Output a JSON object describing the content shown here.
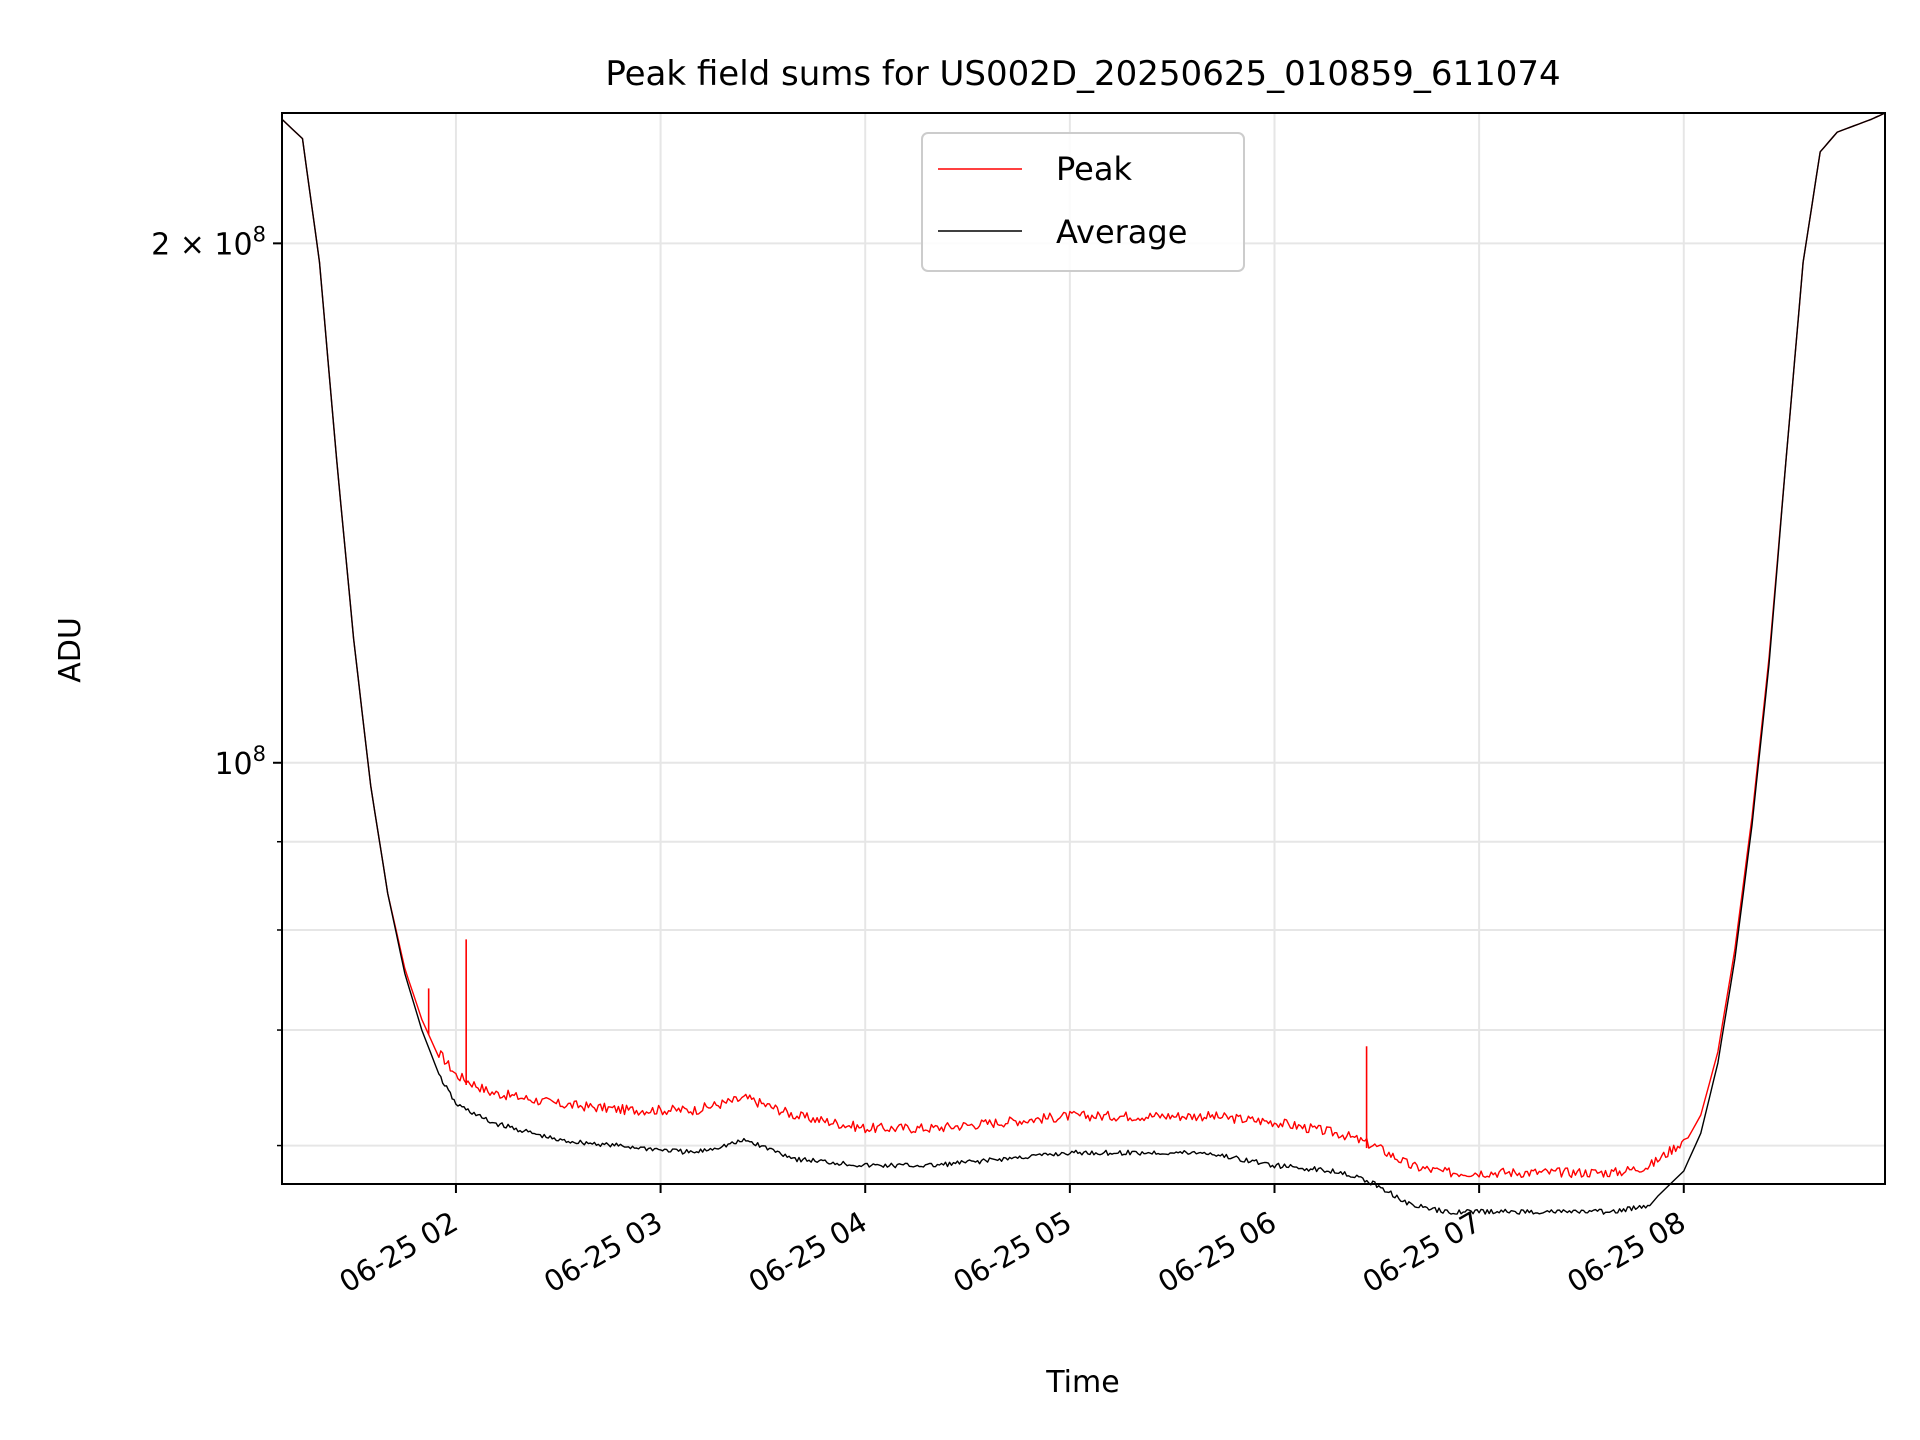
{
  "chart_data": {
    "type": "line",
    "title": "Peak field sums for US002D_20250625_010859_611074",
    "xlabel": "Time",
    "ylabel": "ADU",
    "yscale": "log",
    "ylim": [
      57000000,
      238000000
    ],
    "xlim": [
      "06-25 01:09",
      "06-25 08:59"
    ],
    "x_ticks": [
      {
        "t": "06-25 02:00",
        "label": "06-25 02"
      },
      {
        "t": "06-25 03:00",
        "label": "06-25 03"
      },
      {
        "t": "06-25 04:00",
        "label": "06-25 04"
      },
      {
        "t": "06-25 05:00",
        "label": "06-25 05"
      },
      {
        "t": "06-25 06:00",
        "label": "06-25 06"
      },
      {
        "t": "06-25 07:00",
        "label": "06-25 07"
      },
      {
        "t": "06-25 08:00",
        "label": "06-25 08"
      }
    ],
    "y_major_ticks": [
      {
        "value": 100000000,
        "base": "10",
        "exp": "8",
        "coef": ""
      },
      {
        "value": 200000000,
        "base": "10",
        "exp": "8",
        "coef": "2 × "
      }
    ],
    "y_minor_ticks": [
      60000000,
      70000000,
      80000000,
      90000000
    ],
    "grid": true,
    "legend_position": "top-center",
    "series": [
      {
        "name": "Peak",
        "color": "#ff0000",
        "x": [
          "06-25 01:09",
          "06-25 01:15",
          "06-25 01:20",
          "06-25 01:25",
          "06-25 01:30",
          "06-25 01:35",
          "06-25 01:40",
          "06-25 01:45",
          "06-25 01:50",
          "06-25 01:55",
          "06-25 02:00",
          "06-25 02:10",
          "06-25 02:30",
          "06-25 02:50",
          "06-25 03:10",
          "06-25 03:25",
          "06-25 03:40",
          "06-25 04:00",
          "06-25 04:20",
          "06-25 04:40",
          "06-25 05:00",
          "06-25 05:20",
          "06-25 05:40",
          "06-25 06:00",
          "06-25 06:20",
          "06-25 06:30",
          "06-25 06:40",
          "06-25 06:50",
          "06-25 07:00",
          "06-25 07:20",
          "06-25 07:40",
          "06-25 07:50",
          "06-25 08:00",
          "06-25 08:05",
          "06-25 08:10",
          "06-25 08:15",
          "06-25 08:20",
          "06-25 08:25",
          "06-25 08:30",
          "06-25 08:35",
          "06-25 08:40",
          "06-25 08:45",
          "06-25 08:50",
          "06-25 08:55",
          "06-25 08:59"
        ],
        "values": [
          236000000,
          230000000,
          195000000,
          150000000,
          118000000,
          97000000,
          84000000,
          76000000,
          71000000,
          67500000,
          65500000,
          64000000,
          63000000,
          62500000,
          62500000,
          63500000,
          62000000,
          61000000,
          61000000,
          61500000,
          62000000,
          62000000,
          62000000,
          61500000,
          60500000,
          59500000,
          58000000,
          57500000,
          57500000,
          57500000,
          57500000,
          58000000,
          60000000,
          62500000,
          68000000,
          78000000,
          93000000,
          115000000,
          150000000,
          195000000,
          226000000,
          232000000,
          234000000,
          236000000,
          238000000
        ],
        "spikes": [
          {
            "x": "06-25 01:52",
            "value": 74000000
          },
          {
            "x": "06-25 02:03",
            "value": 79000000
          },
          {
            "x": "06-25 06:27",
            "value": 68500000
          }
        ]
      },
      {
        "name": "Average",
        "color": "#000000",
        "x": [
          "06-25 01:09",
          "06-25 01:15",
          "06-25 01:20",
          "06-25 01:25",
          "06-25 01:30",
          "06-25 01:35",
          "06-25 01:40",
          "06-25 01:45",
          "06-25 01:50",
          "06-25 01:55",
          "06-25 02:00",
          "06-25 02:10",
          "06-25 02:30",
          "06-25 02:50",
          "06-25 03:10",
          "06-25 03:25",
          "06-25 03:40",
          "06-25 04:00",
          "06-25 04:20",
          "06-25 04:40",
          "06-25 05:00",
          "06-25 05:20",
          "06-25 05:40",
          "06-25 06:00",
          "06-25 06:20",
          "06-25 06:30",
          "06-25 06:40",
          "06-25 06:50",
          "06-25 07:00",
          "06-25 07:20",
          "06-25 07:40",
          "06-25 07:50",
          "06-25 08:00",
          "06-25 08:05",
          "06-25 08:10",
          "06-25 08:15",
          "06-25 08:20",
          "06-25 08:25",
          "06-25 08:30",
          "06-25 08:35",
          "06-25 08:40",
          "06-25 08:45",
          "06-25 08:50",
          "06-25 08:55",
          "06-25 08:59"
        ],
        "values": [
          236000000,
          230000000,
          195000000,
          150000000,
          118000000,
          97000000,
          84000000,
          75500000,
          70000000,
          66000000,
          63500000,
          62000000,
          60500000,
          60000000,
          59500000,
          60500000,
          59000000,
          58500000,
          58500000,
          59000000,
          59500000,
          59500000,
          59500000,
          58500000,
          58000000,
          57000000,
          55500000,
          55000000,
          55000000,
          55000000,
          55000000,
          55500000,
          58000000,
          61000000,
          67000000,
          77000000,
          92000000,
          114000000,
          150000000,
          195000000,
          226000000,
          232000000,
          234000000,
          236000000,
          238000000
        ]
      }
    ]
  }
}
